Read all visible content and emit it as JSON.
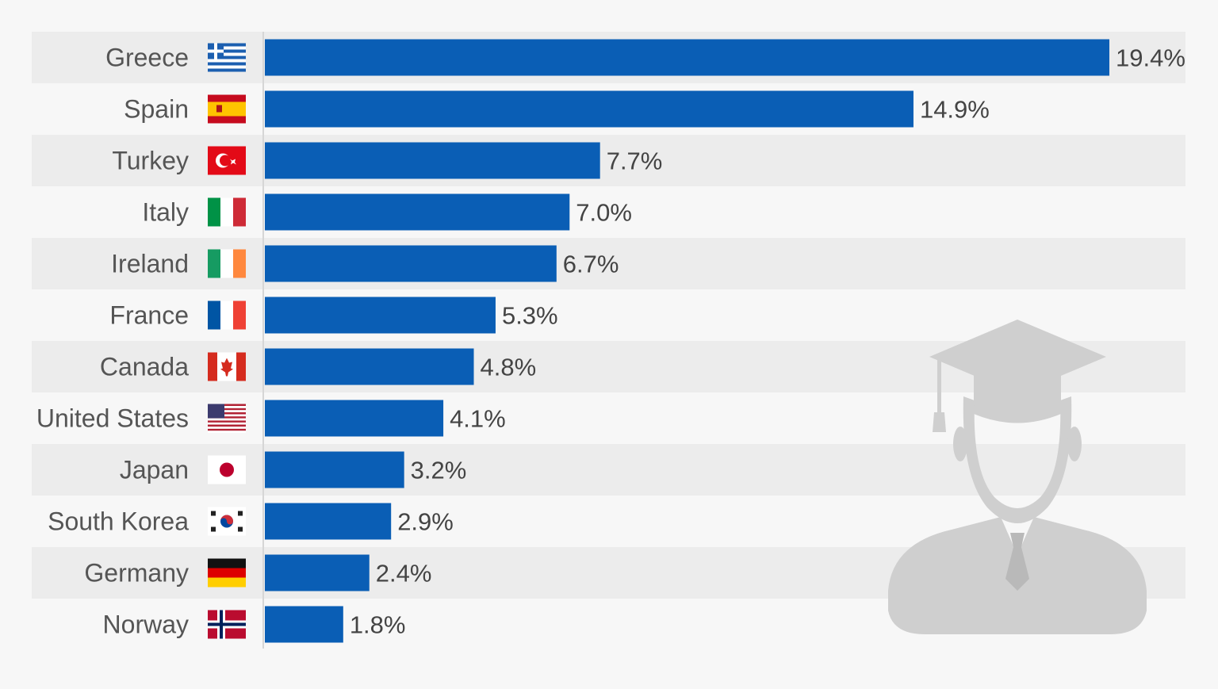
{
  "chart_data": {
    "type": "bar",
    "orientation": "horizontal",
    "categories": [
      "Greece",
      "Spain",
      "Turkey",
      "Italy",
      "Ireland",
      "France",
      "Canada",
      "United States",
      "Japan",
      "South Korea",
      "Germany",
      "Norway"
    ],
    "values": [
      19.4,
      14.9,
      7.7,
      7.0,
      6.7,
      5.3,
      4.8,
      4.1,
      3.2,
      2.9,
      2.4,
      1.8
    ],
    "value_labels": [
      "19.4%",
      "14.9%",
      "7.7%",
      "7.0%",
      "6.7%",
      "5.3%",
      "4.8%",
      "4.1%",
      "3.2%",
      "2.9%",
      "2.4%",
      "1.8%"
    ],
    "flags": [
      "greece-flag",
      "spain-flag",
      "turkey-flag",
      "italy-flag",
      "ireland-flag",
      "france-flag",
      "canada-flag",
      "usa-flag",
      "japan-flag",
      "south-korea-flag",
      "germany-flag",
      "norway-flag"
    ],
    "xlim": [
      0,
      19.4
    ],
    "grid": false,
    "bar_color": "#0a5eb5",
    "stripe_color": "#ececec",
    "decoration_icon": "graduate-icon"
  }
}
